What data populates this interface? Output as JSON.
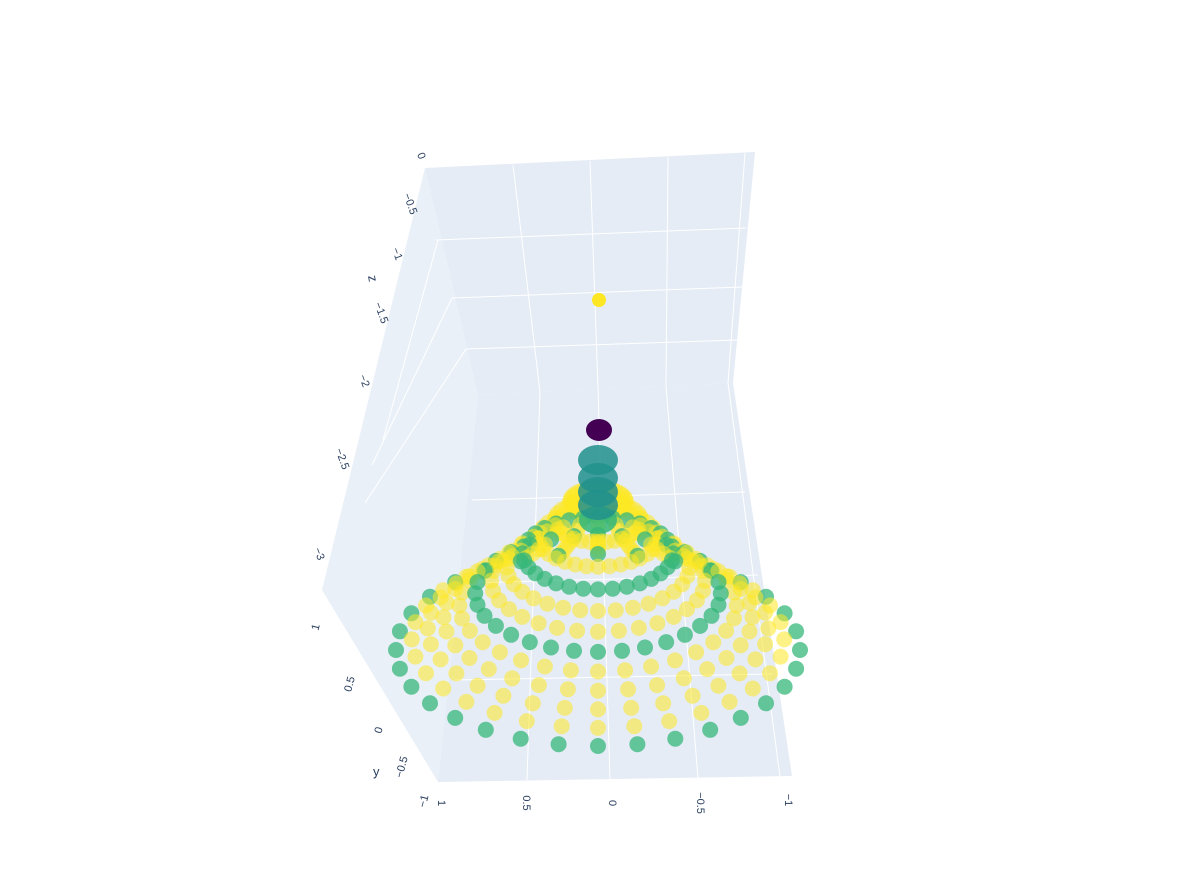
{
  "chart_data": {
    "type": "scatter3d",
    "colorscale": "viridis",
    "colors": {
      "purple": "#440154",
      "teal": "#21918c",
      "green": "#35b779",
      "yellow": "#fde725",
      "pane": "#e5ecf6",
      "grid": "#ffffff",
      "tick": "#2a3f5f"
    },
    "axes": {
      "x": {
        "label": "",
        "range": [
          -1,
          1
        ],
        "ticks": [
          "1",
          "0.5",
          "0",
          "−0.5",
          "−1"
        ]
      },
      "y": {
        "label": "y",
        "range": [
          -1,
          1
        ],
        "ticks": [
          "1",
          "0.5",
          "0",
          "−0.5",
          "−1"
        ]
      },
      "z": {
        "label": "z",
        "range": [
          -3,
          0
        ],
        "ticks": [
          "0",
          "−0.5",
          "−1",
          "−1.5",
          "−2",
          "−2.5",
          "−3"
        ]
      }
    },
    "points": {
      "apex": {
        "x": 0,
        "y": 0,
        "z": -0.8
      },
      "purple_marker": {
        "x": 0,
        "y": 0,
        "z": -1.7
      },
      "cone": {
        "rings": 12,
        "spokes": 32,
        "r_max": 1.0,
        "z_top": -1.8,
        "z_bottom": -3.0
      }
    }
  }
}
